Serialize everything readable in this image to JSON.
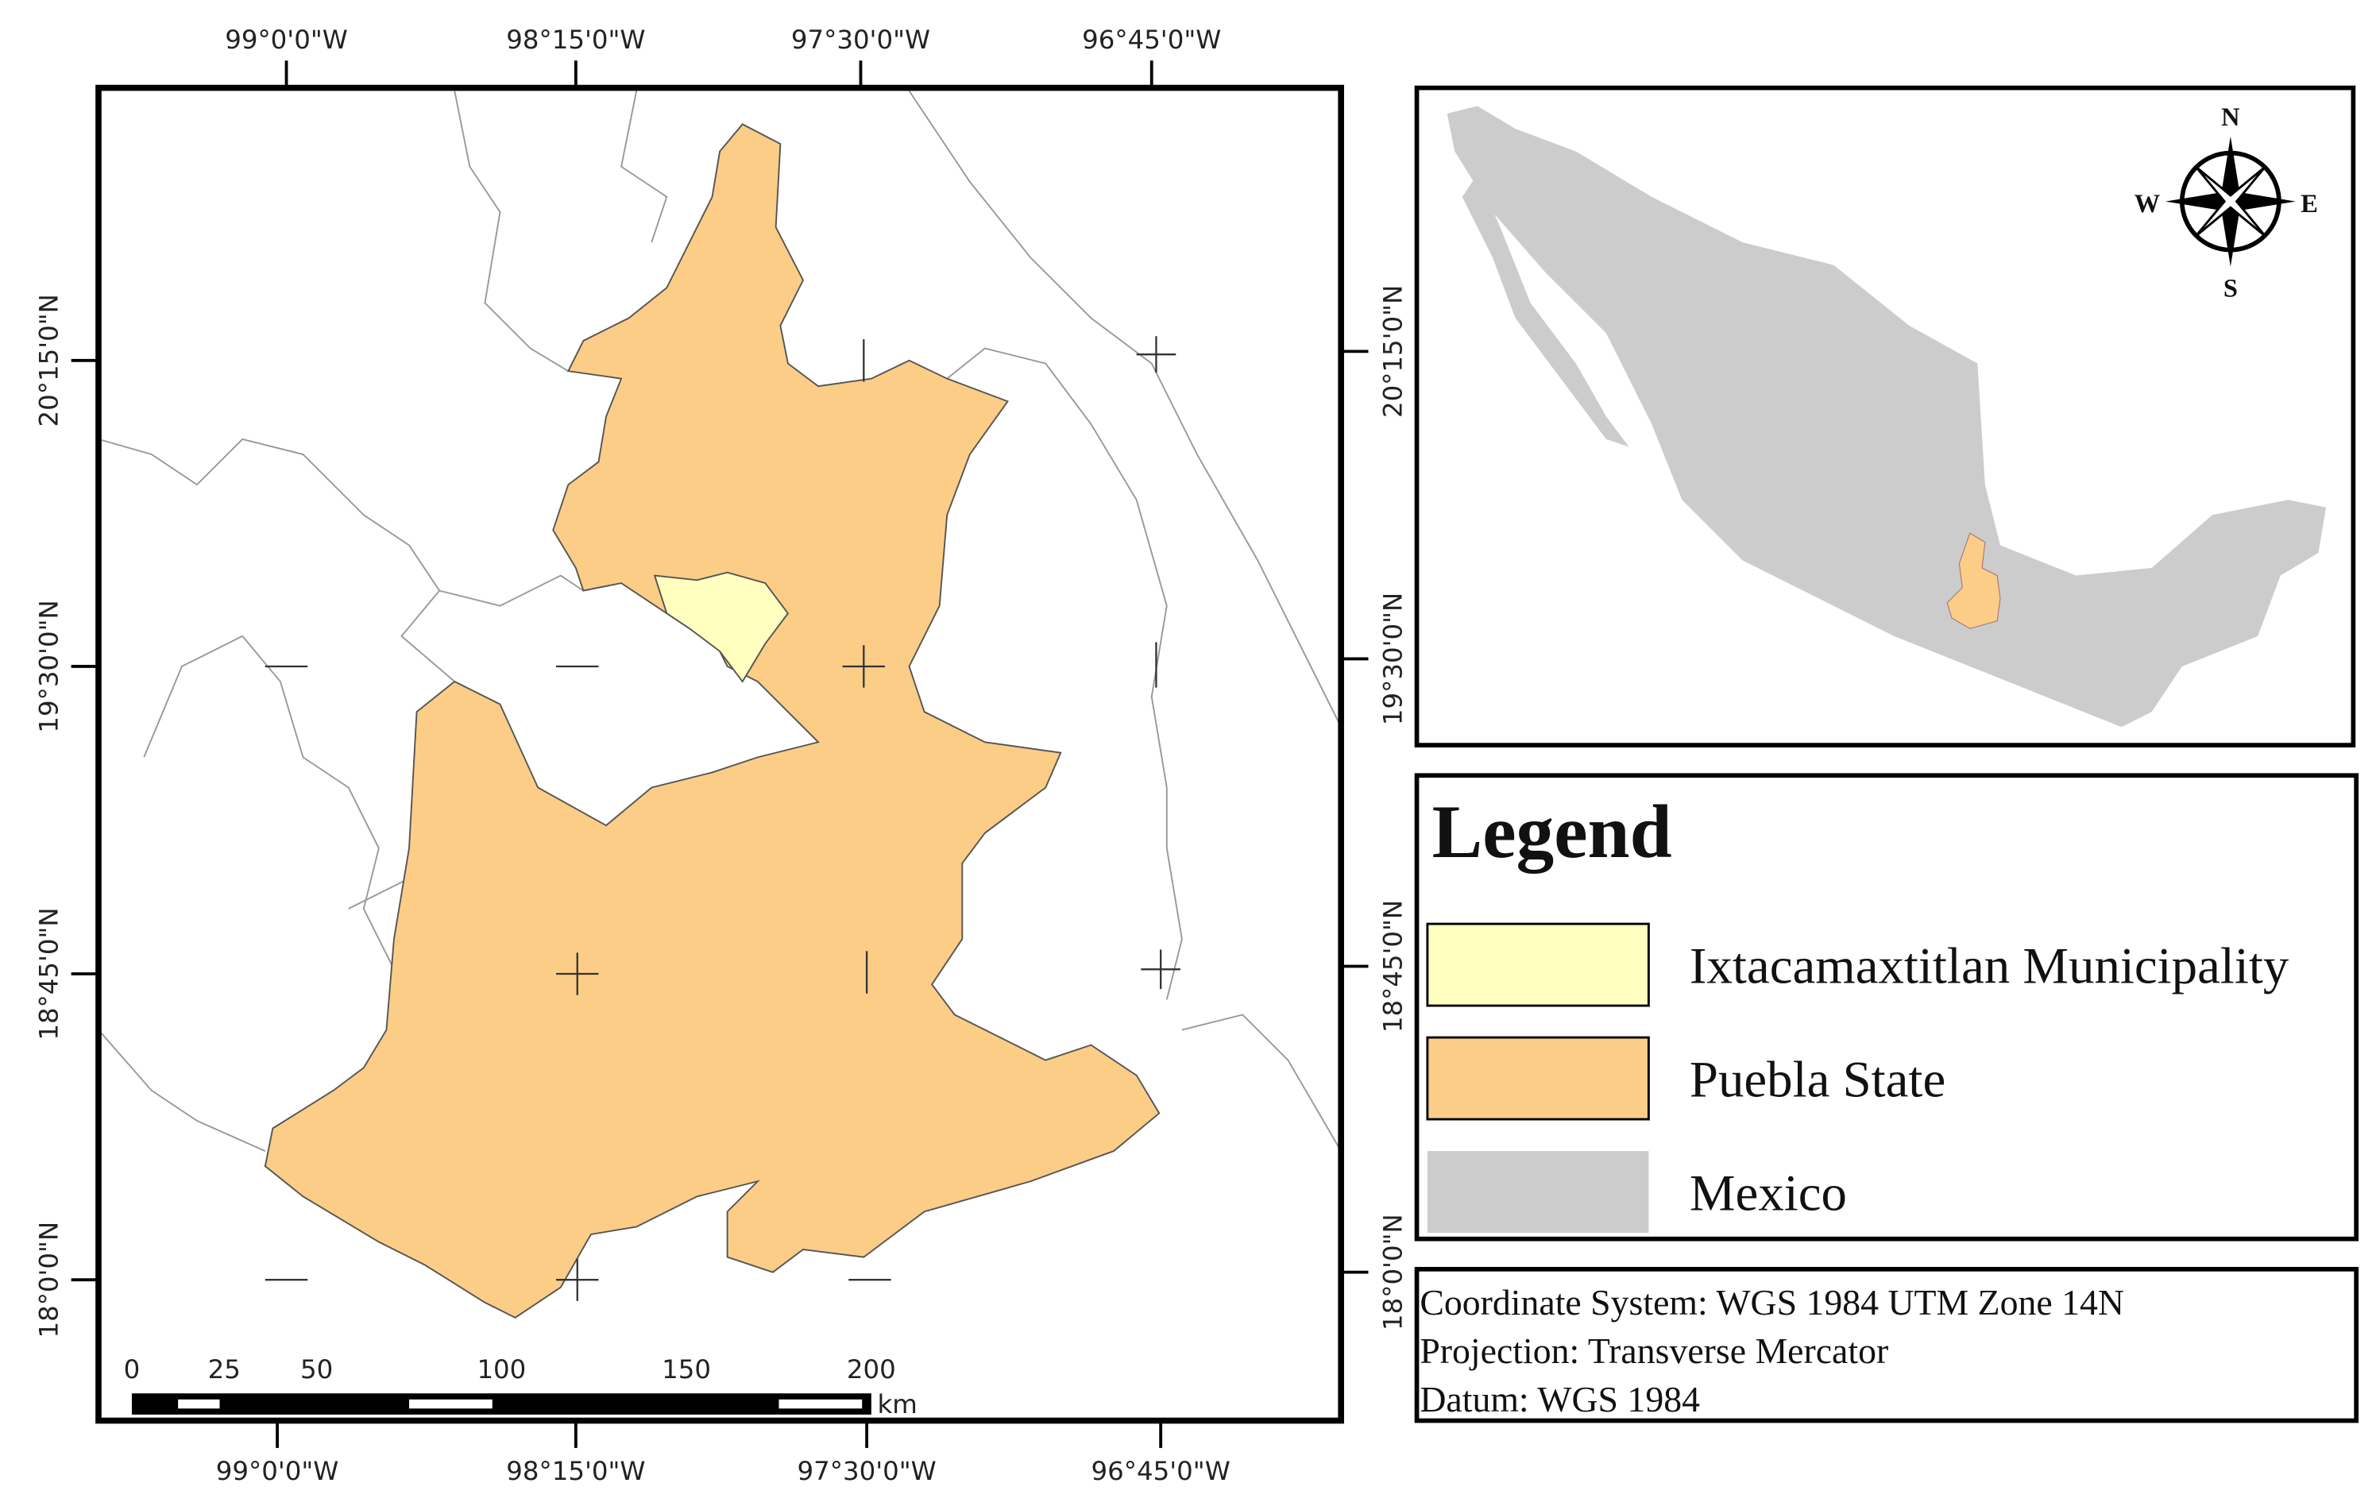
{
  "main_map": {
    "top_labels": [
      "99°0'0\"W",
      "98°15'0\"W",
      "97°30'0\"W",
      "96°45'0\"W"
    ],
    "bottom_labels": [
      "99°0'0\"W",
      "98°15'0\"W",
      "97°30'0\"W",
      "96°45'0\"W"
    ],
    "left_labels": [
      "20°15'0\"N",
      "19°30'0\"N",
      "18°45'0\"N",
      "18°0'0\"N"
    ],
    "right_labels": [
      "20°15'0\"N",
      "19°30'0\"N",
      "18°45'0\"N",
      "18°0'0\"N"
    ],
    "scale_bar": {
      "ticks": [
        0,
        25,
        50,
        100,
        150,
        200
      ],
      "unit": "km"
    }
  },
  "inset_map": {
    "compass": {
      "north": "N",
      "south": "S",
      "east": "E",
      "west": "W"
    }
  },
  "legend": {
    "title": "Legend",
    "items": [
      {
        "label": "Ixtacamaxtitlan Municipality",
        "color": "#ffffc0"
      },
      {
        "label": "Puebla State",
        "color": "#fccd87"
      },
      {
        "label": "Mexico",
        "color": "#cccccc"
      }
    ]
  },
  "notes": [
    "Coordinate System: WGS 1984 UTM Zone 14N",
    "Projection: Transverse Mercator",
    "Datum: WGS 1984"
  ]
}
